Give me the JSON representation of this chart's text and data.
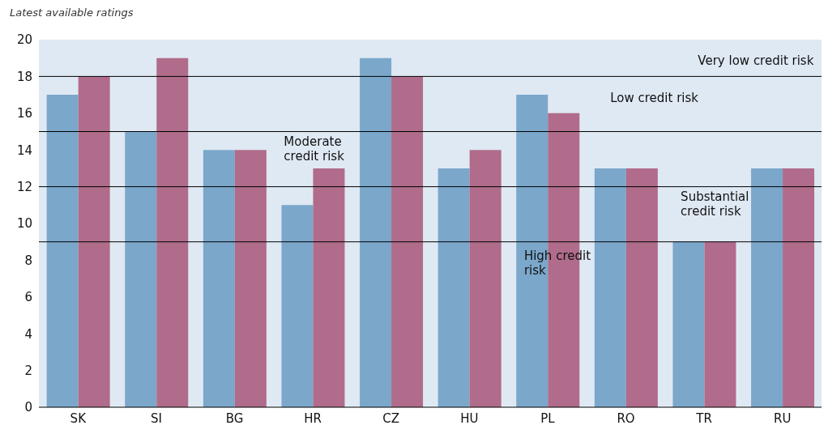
{
  "chart_data": {
    "type": "bar",
    "subtitle": "Latest available ratings",
    "categories": [
      "SK",
      "SI",
      "BG",
      "HR",
      "CZ",
      "HU",
      "PL",
      "RO",
      "TR",
      "RU"
    ],
    "series": [
      {
        "color": "#7ba7cb",
        "values": [
          17,
          15,
          14,
          11,
          19,
          13,
          17,
          13,
          9,
          13
        ]
      },
      {
        "color": "#b06c8a",
        "values": [
          18,
          19,
          14,
          13,
          18,
          14,
          16,
          13,
          9,
          13
        ]
      }
    ],
    "ylim": [
      0,
      20
    ],
    "yticks": [
      0,
      2,
      4,
      6,
      8,
      10,
      12,
      14,
      16,
      18,
      20
    ],
    "ref_lines": [
      {
        "axis": "y",
        "value": 9,
        "color": "#000000"
      },
      {
        "axis": "y",
        "value": 12,
        "color": "#000000"
      },
      {
        "axis": "y",
        "value": 15,
        "color": "#000000"
      },
      {
        "axis": "y",
        "value": 18,
        "color": "#000000"
      }
    ],
    "annotations": [
      "Very low credit risk",
      "Low credit risk",
      "Moderate\ncredit risk",
      "Substantial\ncredit risk",
      "High credit\nrisk"
    ]
  }
}
